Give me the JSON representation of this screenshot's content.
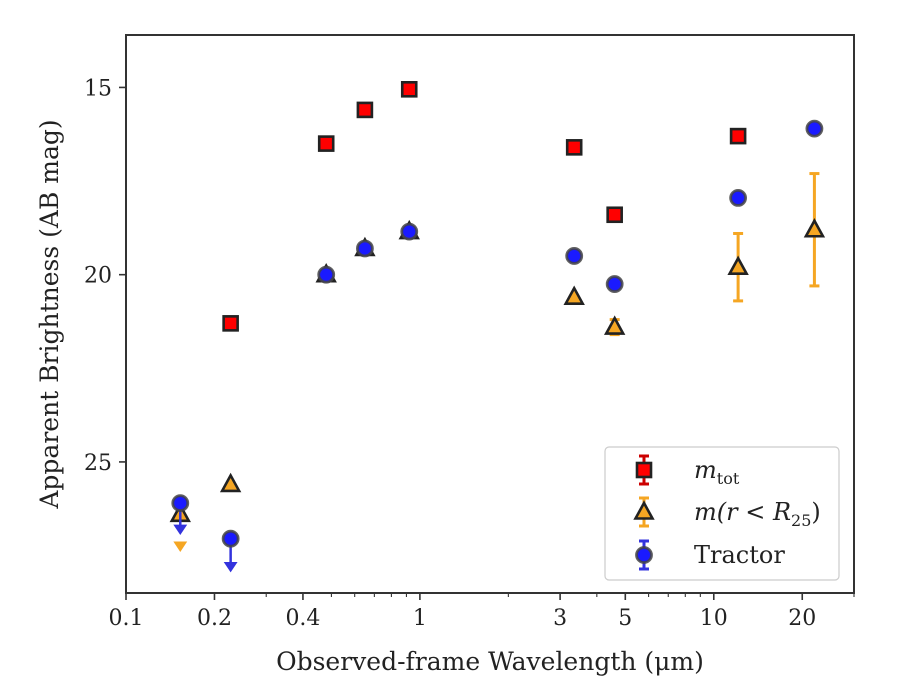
{
  "chart_data": {
    "type": "scatter",
    "xlabel": "Observed-frame Wavelength (μm)",
    "ylabel": "Apparent Brightness (AB mag)",
    "xscale": "log",
    "yaxis_inverted": true,
    "xlim": [
      0.1,
      30
    ],
    "ylim": [
      28.5,
      13.6
    ],
    "xticks": [
      {
        "value": 0.1,
        "label": "0.1"
      },
      {
        "value": 0.2,
        "label": "0.2"
      },
      {
        "value": 0.4,
        "label": "0.4"
      },
      {
        "value": 1,
        "label": "1"
      },
      {
        "value": 3,
        "label": "3"
      },
      {
        "value": 5,
        "label": "5"
      },
      {
        "value": 10,
        "label": "10"
      },
      {
        "value": 20,
        "label": "20"
      }
    ],
    "yticks": [
      {
        "value": 15,
        "label": "15"
      },
      {
        "value": 20,
        "label": "20"
      },
      {
        "value": 25,
        "label": "25"
      }
    ],
    "legend_position": "lower-right",
    "series": [
      {
        "name": "m_tot",
        "legend": {
          "main": "m",
          "sub": "tot"
        },
        "marker": "square",
        "color": "#ff0000",
        "edge_color": "#222222",
        "errbar_color": "#cc0000",
        "points": [
          {
            "x": 0.227,
            "y": 21.3
          },
          {
            "x": 0.48,
            "y": 16.5
          },
          {
            "x": 0.65,
            "y": 15.6
          },
          {
            "x": 0.92,
            "y": 15.05
          },
          {
            "x": 3.35,
            "y": 16.6
          },
          {
            "x": 4.6,
            "y": 18.4
          },
          {
            "x": 12.1,
            "y": 16.3
          }
        ]
      },
      {
        "name": "m(r < R25)",
        "legend": {
          "main": "m(r < R",
          "sub": "25",
          "tail": ")"
        },
        "marker": "triangle",
        "color": "#f5a623",
        "edge_color": "#222222",
        "errbar_color": "#f5a623",
        "points": [
          {
            "x": 0.153,
            "y": 26.4,
            "upper_limit": 27.3
          },
          {
            "x": 0.227,
            "y": 25.6
          },
          {
            "x": 0.48,
            "y": 20.0
          },
          {
            "x": 0.65,
            "y": 19.3
          },
          {
            "x": 0.92,
            "y": 18.85
          },
          {
            "x": 3.35,
            "y": 20.6
          },
          {
            "x": 4.6,
            "y": 21.4,
            "err": 0.2
          },
          {
            "x": 12.1,
            "y": 19.8,
            "err": 0.9
          },
          {
            "x": 22.0,
            "y": 18.8,
            "err": 1.5
          }
        ]
      },
      {
        "name": "Tractor",
        "legend": {
          "main": "Tractor"
        },
        "marker": "circle",
        "color": "#1a1aff",
        "edge_color": "#444444",
        "errbar_color": "#3333dd",
        "points": [
          {
            "x": 0.153,
            "y": 26.1,
            "upper_limit": 26.9
          },
          {
            "x": 0.227,
            "y": 27.05,
            "upper_limit": 27.9
          },
          {
            "x": 0.48,
            "y": 20.0
          },
          {
            "x": 0.65,
            "y": 19.3
          },
          {
            "x": 0.92,
            "y": 18.85
          },
          {
            "x": 3.35,
            "y": 19.5
          },
          {
            "x": 4.6,
            "y": 20.25
          },
          {
            "x": 12.1,
            "y": 17.95
          },
          {
            "x": 22.0,
            "y": 16.1
          }
        ]
      }
    ]
  }
}
